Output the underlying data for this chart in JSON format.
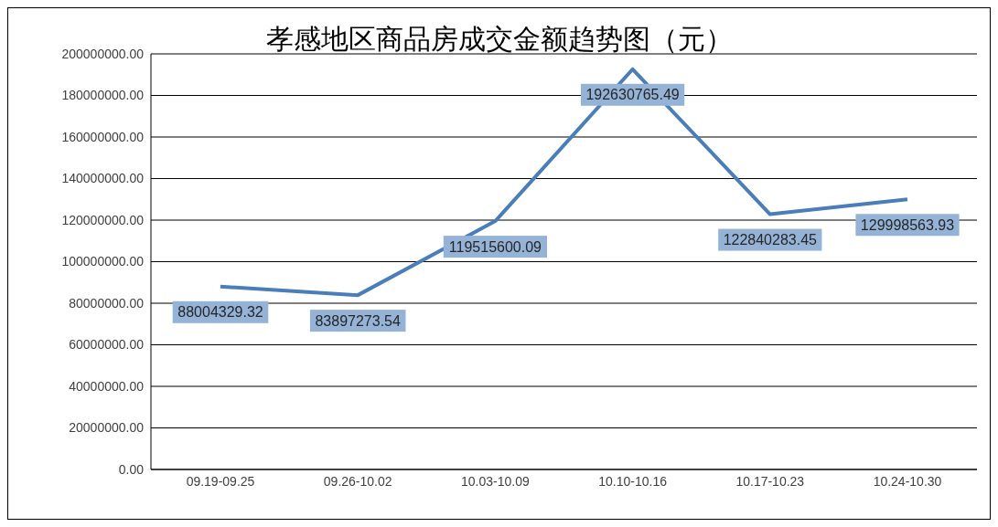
{
  "chart_data": {
    "type": "line",
    "title": "孝感地区商品房成交金额趋势图（元）",
    "categories": [
      "09.19-09.25",
      "09.26-10.02",
      "10.03-10.09",
      "10.10-10.16",
      "10.17-10.23",
      "10.24-10.30"
    ],
    "series": [
      {
        "color": "#4a7ebb",
        "values": [
          88004329.32,
          83897273.54,
          119515600.09,
          192630765.49,
          122840283.45,
          129998563.93
        ]
      }
    ],
    "ylim": [
      0,
      200000000
    ],
    "yticks": [
      {
        "value": 0,
        "label": "0.00"
      },
      {
        "value": 20000000,
        "label": "20000000.00"
      },
      {
        "value": 40000000,
        "label": "40000000.00"
      },
      {
        "value": 60000000,
        "label": "60000000.00"
      },
      {
        "value": 80000000,
        "label": "80000000.00"
      },
      {
        "value": 100000000,
        "label": "100000000.00"
      },
      {
        "value": 120000000,
        "label": "120000000.00"
      },
      {
        "value": 140000000,
        "label": "140000000.00"
      },
      {
        "value": 160000000,
        "label": "160000000.00"
      },
      {
        "value": 180000000,
        "label": "180000000.00"
      },
      {
        "value": 200000000,
        "label": "200000000.00"
      }
    ],
    "grid": "y",
    "marker": "none",
    "line_style": "solid",
    "data_labels": true
  }
}
